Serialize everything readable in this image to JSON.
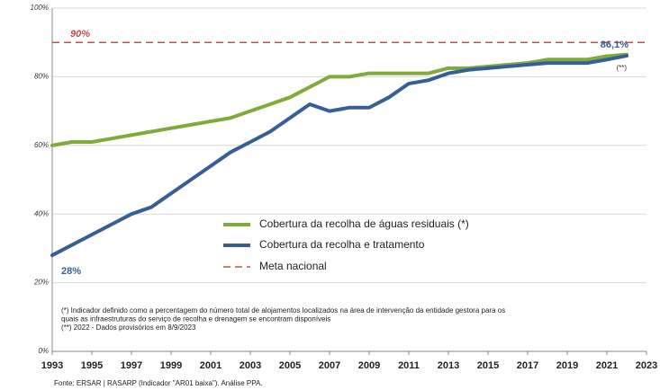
{
  "chart_data": {
    "type": "line",
    "x": [
      1993,
      1994,
      1995,
      1996,
      1997,
      1998,
      1999,
      2000,
      2001,
      2002,
      2003,
      2004,
      2005,
      2006,
      2007,
      2008,
      2009,
      2010,
      2011,
      2012,
      2013,
      2014,
      2015,
      2016,
      2017,
      2018,
      2019,
      2020,
      2021,
      2022
    ],
    "series": [
      {
        "name": "Cobertura da recolha de águas residuais (*)",
        "color": "#7fab3a",
        "values": [
          60,
          61,
          61,
          62,
          63,
          64,
          65,
          66,
          67,
          68,
          70,
          72,
          74,
          77,
          80,
          80,
          81,
          81,
          81,
          81,
          82.5,
          82.5,
          83,
          83.5,
          84,
          85,
          85,
          85,
          86,
          86.5
        ]
      },
      {
        "name": "Cobertura da recolha e tratamento",
        "color": "#365f97",
        "values": [
          28,
          31,
          34,
          37,
          40,
          42,
          46,
          50,
          54,
          58,
          61,
          64,
          68,
          72,
          70,
          71,
          71,
          74,
          78,
          79,
          81,
          82,
          82.5,
          83,
          83.5,
          84,
          84,
          84,
          85,
          86.1
        ],
        "value_labels": [
          "28%",
          null,
          null,
          null,
          null,
          null,
          null,
          null,
          null,
          null,
          null,
          null,
          null,
          null,
          null,
          null,
          null,
          null,
          null,
          null,
          null,
          null,
          null,
          null,
          null,
          null,
          null,
          null,
          null,
          "86,1%"
        ]
      }
    ],
    "target": {
      "name": "Meta nacional",
      "value": 90,
      "label": "90%",
      "color": "#c0504d"
    },
    "annotations": [
      "(**)"
    ],
    "notes": [
      "(*) Indicador definido como a percentagem do número total de alojamentos localizados na área de intervenção da entidade gestora para os",
      "quais as infraestruturas do serviço de recolha e drenagem se encontram disponíveis",
      "(**) 2022 - Dados provisórios em 8/9/2023"
    ],
    "source": "Fonte: ERSAR | RASARP (Indicador \"AR01 baixa\"). Análise PPA.",
    "xlim": [
      1993,
      2023
    ],
    "xticks": [
      1993,
      1995,
      1997,
      1999,
      2001,
      2003,
      2005,
      2007,
      2009,
      2011,
      2013,
      2015,
      2017,
      2019,
      2021,
      2023
    ],
    "ylim": [
      0,
      100
    ],
    "yticks": [
      {
        "value": 0,
        "label": "0%"
      },
      {
        "value": 20,
        "label": "20%"
      },
      {
        "value": 40,
        "label": "40%"
      },
      {
        "value": 60,
        "label": "60%"
      },
      {
        "value": 80,
        "label": "80%"
      },
      {
        "value": 100,
        "label": "100%"
      }
    ],
    "grid": true
  }
}
